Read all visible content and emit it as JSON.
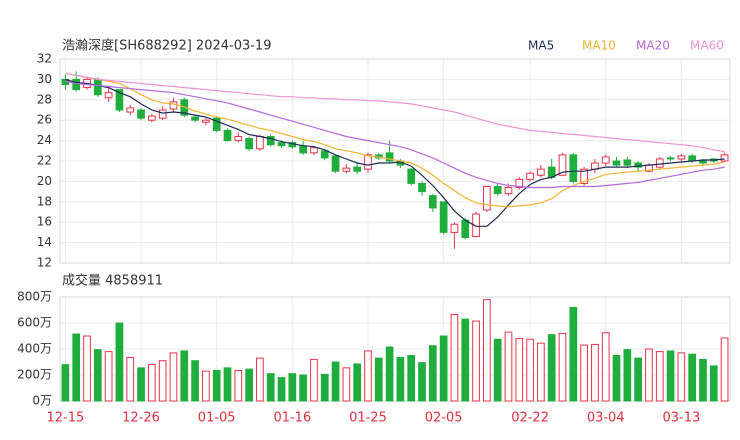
{
  "chart_data": [
    {
      "type": "candlestick",
      "title": "浩瀚深度[SH688292] 2024-03-19",
      "categories": [
        "12-15",
        null,
        null,
        null,
        null,
        null,
        null,
        "12-26",
        null,
        null,
        null,
        null,
        null,
        null,
        "01-05",
        null,
        null,
        null,
        null,
        null,
        null,
        "01-16",
        null,
        null,
        null,
        null,
        null,
        null,
        "01-25",
        null,
        null,
        null,
        null,
        null,
        null,
        "02-05",
        null,
        null,
        null,
        null,
        null,
        null,
        null,
        "02-22",
        null,
        null,
        null,
        null,
        null,
        null,
        "03-04",
        null,
        null,
        null,
        null,
        null,
        null,
        "03-13",
        null,
        null,
        null,
        null
      ],
      "open": [
        30,
        30,
        29.2,
        30,
        28.2,
        29,
        26.8,
        27,
        26,
        26.2,
        27.1,
        28,
        26.3,
        25.8,
        26.2,
        25,
        24,
        24.2,
        23.2,
        24.4,
        23.8,
        23.8,
        23.5,
        22.8,
        23,
        22.5,
        21,
        21.4,
        21.2,
        22.6,
        22.8,
        22,
        21.2,
        19.8,
        18.6,
        18,
        15,
        16.2,
        14.6,
        17.2,
        19.5,
        18.8,
        19.4,
        20.2,
        20.6,
        21.4,
        20.6,
        22.6,
        19.8,
        21.2,
        21.8,
        22,
        22.1,
        21.8,
        21,
        21.4,
        22.3,
        22.2,
        22.5,
        22,
        22.2,
        22
      ],
      "high": [
        30.5,
        30.8,
        30.3,
        30.2,
        29.2,
        29,
        27.5,
        27.2,
        26.6,
        27.4,
        28.2,
        28.2,
        26.5,
        26.2,
        26.4,
        25.2,
        24.8,
        24.4,
        24.6,
        24.6,
        24,
        24,
        24,
        23.5,
        23.2,
        22.6,
        21.7,
        21.8,
        22.8,
        22.8,
        24,
        22.2,
        21.3,
        20,
        18.8,
        18,
        16,
        16.4,
        17,
        19.6,
        19.8,
        19.8,
        20.4,
        21,
        21.6,
        22.2,
        22.8,
        22.8,
        21.4,
        22.2,
        22.6,
        22.4,
        22.4,
        22,
        21.8,
        22.4,
        22.5,
        22.7,
        22.7,
        22.2,
        22.3,
        22.8
      ],
      "low": [
        29,
        28.8,
        29,
        28.3,
        27.8,
        26.8,
        26.5,
        26,
        25.8,
        26,
        26.8,
        26.3,
        25.8,
        25.5,
        24.8,
        23.9,
        23.8,
        23,
        23,
        23.4,
        23.3,
        23.2,
        22.6,
        22.6,
        22.1,
        20.8,
        20.8,
        20.7,
        20.8,
        22.1,
        21.8,
        21.3,
        19.6,
        18.6,
        17,
        14.8,
        13.4,
        14.3,
        14.5,
        17,
        18.6,
        18.6,
        19.2,
        20,
        20.4,
        20.2,
        20.5,
        19.8,
        19.6,
        20.8,
        21.5,
        21.4,
        21.3,
        21,
        20.9,
        21.2,
        22,
        22,
        21.8,
        21.5,
        21.8,
        21.9
      ],
      "close": [
        29.5,
        29,
        30,
        28.5,
        28.7,
        27,
        27.2,
        26.2,
        26.4,
        27,
        27.8,
        26.5,
        26,
        26,
        25,
        24,
        24.4,
        23.2,
        24.4,
        23.6,
        23.5,
        23.4,
        22.8,
        23.3,
        22.3,
        21,
        21.3,
        21,
        22.6,
        22.3,
        22,
        21.6,
        19.8,
        19,
        17.4,
        15,
        15.8,
        14.5,
        16.8,
        19.5,
        18.8,
        19.4,
        20.2,
        20.8,
        21.2,
        20.4,
        22.6,
        20,
        21.2,
        21.8,
        22.4,
        21.6,
        21.6,
        21.4,
        21.6,
        22.2,
        22.2,
        22.5,
        22,
        21.8,
        22,
        22.6
      ],
      "up_color": "#e8334a",
      "down_color": "#1fae3d",
      "lines": [
        {
          "name": "MA5",
          "color": "#1e2b55",
          "values": [
            30,
            29.7,
            29.6,
            29.4,
            29.2,
            28.7,
            28.3,
            27.6,
            27,
            26.7,
            26.8,
            26.7,
            26.5,
            26.3,
            25.9,
            25.5,
            25.1,
            24.6,
            24.4,
            24.2,
            23.9,
            23.7,
            23.5,
            23.4,
            23.1,
            22.6,
            22.2,
            21.8,
            21.6,
            21.8,
            21.8,
            21.9,
            21.5,
            20.6,
            19.6,
            18.4,
            17.1,
            16.2,
            15.6,
            15.6,
            16.5,
            17.7,
            18.8,
            19.7,
            20.2,
            20.4,
            20.9,
            21,
            21,
            21.2,
            21.4,
            21.4,
            21.4,
            21.5,
            21.6,
            21.7,
            21.8,
            21.9,
            22,
            22.1,
            22.1,
            22.2
          ]
        },
        {
          "name": "MA10",
          "color": "#f2b530",
          "values": [
            30.6,
            30.4,
            30.2,
            30,
            29.8,
            29.6,
            29.1,
            28.5,
            28,
            27.7,
            27.6,
            27.3,
            26.9,
            26.6,
            26.3,
            26.1,
            25.8,
            25.5,
            25.2,
            25,
            24.7,
            24.4,
            24.1,
            23.9,
            23.6,
            23.2,
            23,
            22.8,
            22.5,
            22.4,
            22.2,
            22,
            21.8,
            21.3,
            20.6,
            19.8,
            19.1,
            18.4,
            17.9,
            17.7,
            17.6,
            17.5,
            17.6,
            17.7,
            17.9,
            18.3,
            19.1,
            19.6,
            20,
            20.3,
            20.7,
            20.8,
            20.9,
            21,
            21.1,
            21.2,
            21.3,
            21.4,
            21.5,
            21.6,
            21.7,
            21.9
          ]
        },
        {
          "name": "MA20",
          "color": "#b66cdc",
          "values": [
            29.8,
            29.6,
            29.5,
            29.4,
            29.3,
            29.2,
            29.1,
            29,
            28.9,
            28.8,
            28.7,
            28.5,
            28.3,
            28.1,
            27.9,
            27.7,
            27.4,
            27.1,
            26.8,
            26.5,
            26.2,
            25.9,
            25.6,
            25.3,
            25,
            24.7,
            24.4,
            24.2,
            24,
            23.8,
            23.6,
            23.4,
            23.1,
            22.7,
            22.3,
            21.8,
            21.3,
            20.8,
            20.4,
            20.1,
            19.8,
            19.6,
            19.5,
            19.4,
            19.4,
            19.4,
            19.5,
            19.5,
            19.5,
            19.5,
            19.6,
            19.7,
            19.8,
            19.9,
            20.1,
            20.3,
            20.5,
            20.7,
            20.9,
            21.1,
            21.2,
            21.4
          ]
        },
        {
          "name": "MA60",
          "color": "#ef94d2",
          "values": [
            30.6,
            30.4,
            30.2,
            30,
            29.9,
            29.8,
            29.7,
            29.6,
            29.5,
            29.4,
            29.3,
            29.2,
            29.1,
            29,
            28.9,
            28.8,
            28.7,
            28.6,
            28.5,
            28.4,
            28.3,
            28.3,
            28.2,
            28.2,
            28.1,
            28.1,
            28,
            28,
            27.9,
            27.9,
            27.8,
            27.7,
            27.6,
            27.4,
            27.2,
            27,
            26.8,
            26.5,
            26.2,
            25.9,
            25.6,
            25.4,
            25.2,
            25,
            24.9,
            24.8,
            24.7,
            24.6,
            24.5,
            24.4,
            24.3,
            24.2,
            24.1,
            24,
            23.9,
            23.8,
            23.7,
            23.6,
            23.5,
            23.3,
            23.1,
            22.9
          ]
        }
      ],
      "ylim": [
        12,
        32
      ],
      "yticks": [
        12,
        14,
        16,
        18,
        20,
        22,
        24,
        26,
        28,
        30,
        32
      ],
      "grid": true
    },
    {
      "type": "volume",
      "title": "成交量 4858911",
      "values": [
        280,
        515,
        500,
        395,
        380,
        600,
        335,
        255,
        280,
        310,
        370,
        385,
        310,
        230,
        235,
        255,
        235,
        245,
        330,
        210,
        180,
        210,
        200,
        320,
        205,
        300,
        255,
        285,
        385,
        330,
        415,
        335,
        350,
        295,
        425,
        500,
        665,
        630,
        615,
        780,
        475,
        530,
        480,
        475,
        445,
        510,
        520,
        720,
        430,
        435,
        525,
        350,
        395,
        330,
        400,
        380,
        385,
        370,
        360,
        320,
        270,
        485
      ],
      "ylim": [
        0,
        800
      ],
      "yticks": [
        {
          "value": 0,
          "label": "0万"
        },
        {
          "value": 200,
          "label": "200万"
        },
        {
          "value": 400,
          "label": "400万"
        },
        {
          "value": 600,
          "label": "600万"
        },
        {
          "value": 800,
          "label": "800万"
        }
      ],
      "grid": true
    }
  ]
}
